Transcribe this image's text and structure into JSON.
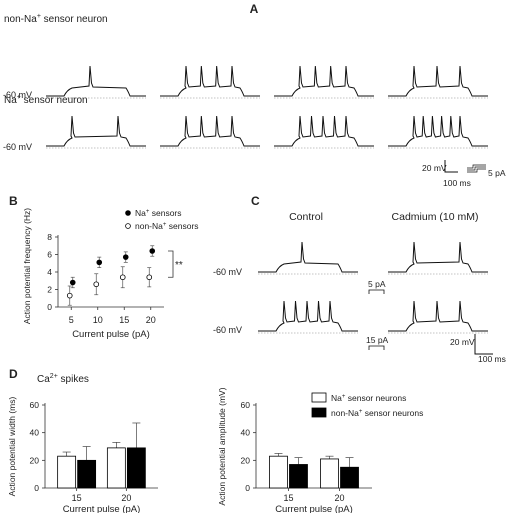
{
  "panel_a": {
    "letter": "A",
    "row1_label_pre": "non-Na",
    "row1_label_sup": "+",
    "row1_label_post": " sensor neuron",
    "row2_label_pre": "Na",
    "row2_label_sup": "+",
    "row2_label_post": " sensor neuron",
    "voltage_label": "-60 mV",
    "scale_mv": "20 mV",
    "scale_pa": "5 pA",
    "scale_ms": "100 ms",
    "spikes_non_na": [
      1,
      4,
      4,
      3
    ],
    "spikes_na": [
      2,
      4,
      5,
      6
    ]
  },
  "panel_b": {
    "letter": "B"
  },
  "panel_c": {
    "letter": "C",
    "control": "Control",
    "cadmium": "Cadmium (10 mM)",
    "voltage_label": "-60 mV",
    "pulse_small": "5 pA",
    "pulse_large": "15 pA",
    "scale_mv": "20 mV",
    "scale_ms": "100 ms"
  },
  "panel_d": {
    "letter": "D",
    "title_pre": "Ca",
    "title_sup": "2+",
    "title_post": " spikes"
  },
  "colors": {
    "na": "#000000",
    "non_na": "#ffffff",
    "trace": "#111111"
  },
  "chart_data": [
    {
      "id": "B",
      "type": "scatter",
      "xlabel": "Current pulse (pA)",
      "ylabel": "Action potential frequency (Hz)",
      "x": [
        5,
        10,
        15,
        20
      ],
      "ylim": [
        0,
        8
      ],
      "yticks": [
        0,
        2,
        4,
        6,
        8
      ],
      "significance": "**",
      "legend_position": "top-right",
      "series": [
        {
          "name_pre": "Na",
          "name_sup": "+",
          "name_post": " sensors",
          "marker": "filled",
          "values": [
            2.8,
            5.1,
            5.7,
            6.4
          ],
          "err": [
            0.6,
            0.6,
            0.6,
            0.6
          ]
        },
        {
          "name_pre": "non-Na",
          "name_sup": "+",
          "name_post": " sensors",
          "marker": "open",
          "values": [
            1.3,
            2.6,
            3.4,
            3.4
          ],
          "err": [
            1.1,
            1.2,
            1.2,
            1.1
          ]
        }
      ]
    },
    {
      "id": "D1",
      "type": "bar",
      "xlabel": "Current pulse (pA)",
      "ylabel": "Action potential width (ms)",
      "categories": [
        "15",
        "20"
      ],
      "ylim": [
        0,
        60
      ],
      "yticks": [
        0,
        20,
        40,
        60
      ],
      "series": [
        {
          "values": [
            23,
            29
          ],
          "err": [
            3,
            4
          ]
        },
        {
          "values": [
            20,
            29
          ],
          "err": [
            10,
            18
          ]
        }
      ]
    },
    {
      "id": "D2",
      "type": "bar",
      "xlabel": "Current pulse (pA)",
      "ylabel": "Action potential amplitude (mV)",
      "categories": [
        "15",
        "20"
      ],
      "ylim": [
        0,
        60
      ],
      "yticks": [
        0,
        20,
        40,
        60
      ],
      "legend_position": "top-right",
      "series": [
        {
          "name_pre": "Na",
          "name_sup": "+",
          "name_post": " sensor neurons",
          "values": [
            23,
            21
          ],
          "err": [
            2,
            2
          ]
        },
        {
          "name_pre": "non-Na",
          "name_sup": "+",
          "name_post": " sensor neurons",
          "values": [
            17,
            15
          ],
          "err": [
            5,
            7
          ]
        }
      ]
    }
  ]
}
